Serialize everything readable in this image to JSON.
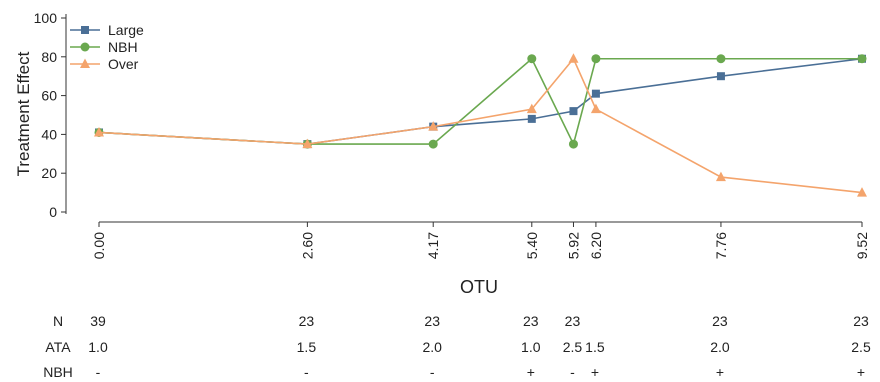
{
  "chart_data": {
    "type": "line",
    "xlabel": "OTU",
    "ylabel": "Treatment Effect",
    "ylim": [
      0,
      100
    ],
    "yticks": [
      0,
      20,
      40,
      60,
      80,
      100
    ],
    "x": [
      0.0,
      2.6,
      4.17,
      5.4,
      5.92,
      6.2,
      7.76,
      9.52
    ],
    "xtick_labels": [
      "0.00",
      "2.60",
      "4.17",
      "5.40",
      "5.92",
      "6.20",
      "7.76",
      "9.52"
    ],
    "grid": false,
    "legend_position": "top-left",
    "series": [
      {
        "name": "Large",
        "color": "#4a6f96",
        "marker": "square",
        "values": [
          41,
          35,
          44,
          48,
          52,
          61,
          70,
          79
        ]
      },
      {
        "name": "NBH",
        "color": "#6aa84f",
        "marker": "circle",
        "values": [
          41,
          35,
          35,
          79,
          35,
          79,
          79,
          79
        ]
      },
      {
        "name": "Over",
        "color": "#f4a46c",
        "marker": "triangle",
        "values": [
          41,
          35,
          44,
          53,
          79,
          53,
          18,
          10
        ]
      }
    ],
    "table": {
      "rows": [
        {
          "label": "N",
          "values": [
            "39",
            "23",
            "23",
            "23",
            "23",
            "",
            "23",
            "23"
          ]
        },
        {
          "label": "ATA",
          "values": [
            "1.0",
            "1.5",
            "2.0",
            "1.0",
            "2.5",
            "1.5",
            "2.0",
            "2.5"
          ]
        },
        {
          "label": "NBH",
          "values": [
            "-",
            "-",
            "-",
            "+",
            "-",
            "+",
            "+",
            "+"
          ]
        }
      ]
    }
  }
}
